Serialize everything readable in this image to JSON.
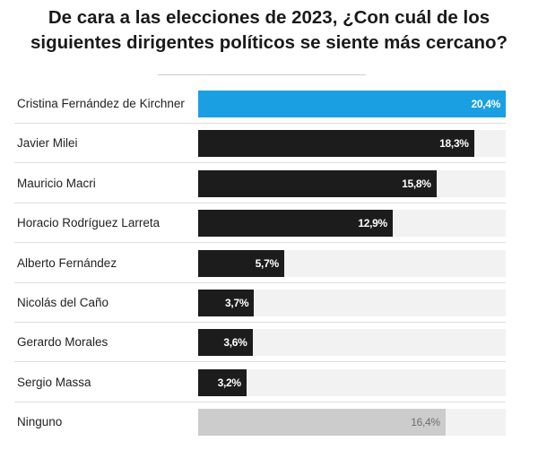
{
  "title_lines": [
    "De cara a las elecciones de 2023, ¿Con cuál de los",
    "siguientes dirigentes políticos se siente más cercano?"
  ],
  "colors": {
    "highlight": "#1aa0e2",
    "default": "#1c1c1c",
    "none": "#cccccc",
    "track": "#f2f2f2",
    "value_light": "#ffffff",
    "value_none": "#6e6e6e"
  },
  "chart_data": {
    "type": "bar",
    "orientation": "horizontal",
    "title": "De cara a las elecciones de 2023, ¿Con cuál de los siguientes dirigentes políticos se siente más cercano?",
    "xlim": [
      0,
      20.4
    ],
    "categories": [
      "Cristina Fernández de Kirchner",
      "Javier Milei",
      "Mauricio Macri",
      "Horacio Rodríguez Larreta",
      "Alberto Fernández",
      "Nicolás del Caño",
      "Gerardo Morales",
      "Sergio Massa",
      "Ninguno"
    ],
    "values": [
      20.4,
      18.3,
      15.8,
      12.9,
      5.7,
      3.7,
      3.6,
      3.2,
      16.4
    ],
    "value_labels": [
      "20,4%",
      "18,3%",
      "15,8%",
      "12,9%",
      "5,7%",
      "3,7%",
      "3,6%",
      "3,2%",
      "16,4%"
    ],
    "bar_styles": [
      "highlight",
      "default",
      "default",
      "default",
      "default",
      "default",
      "default",
      "default",
      "none"
    ]
  }
}
